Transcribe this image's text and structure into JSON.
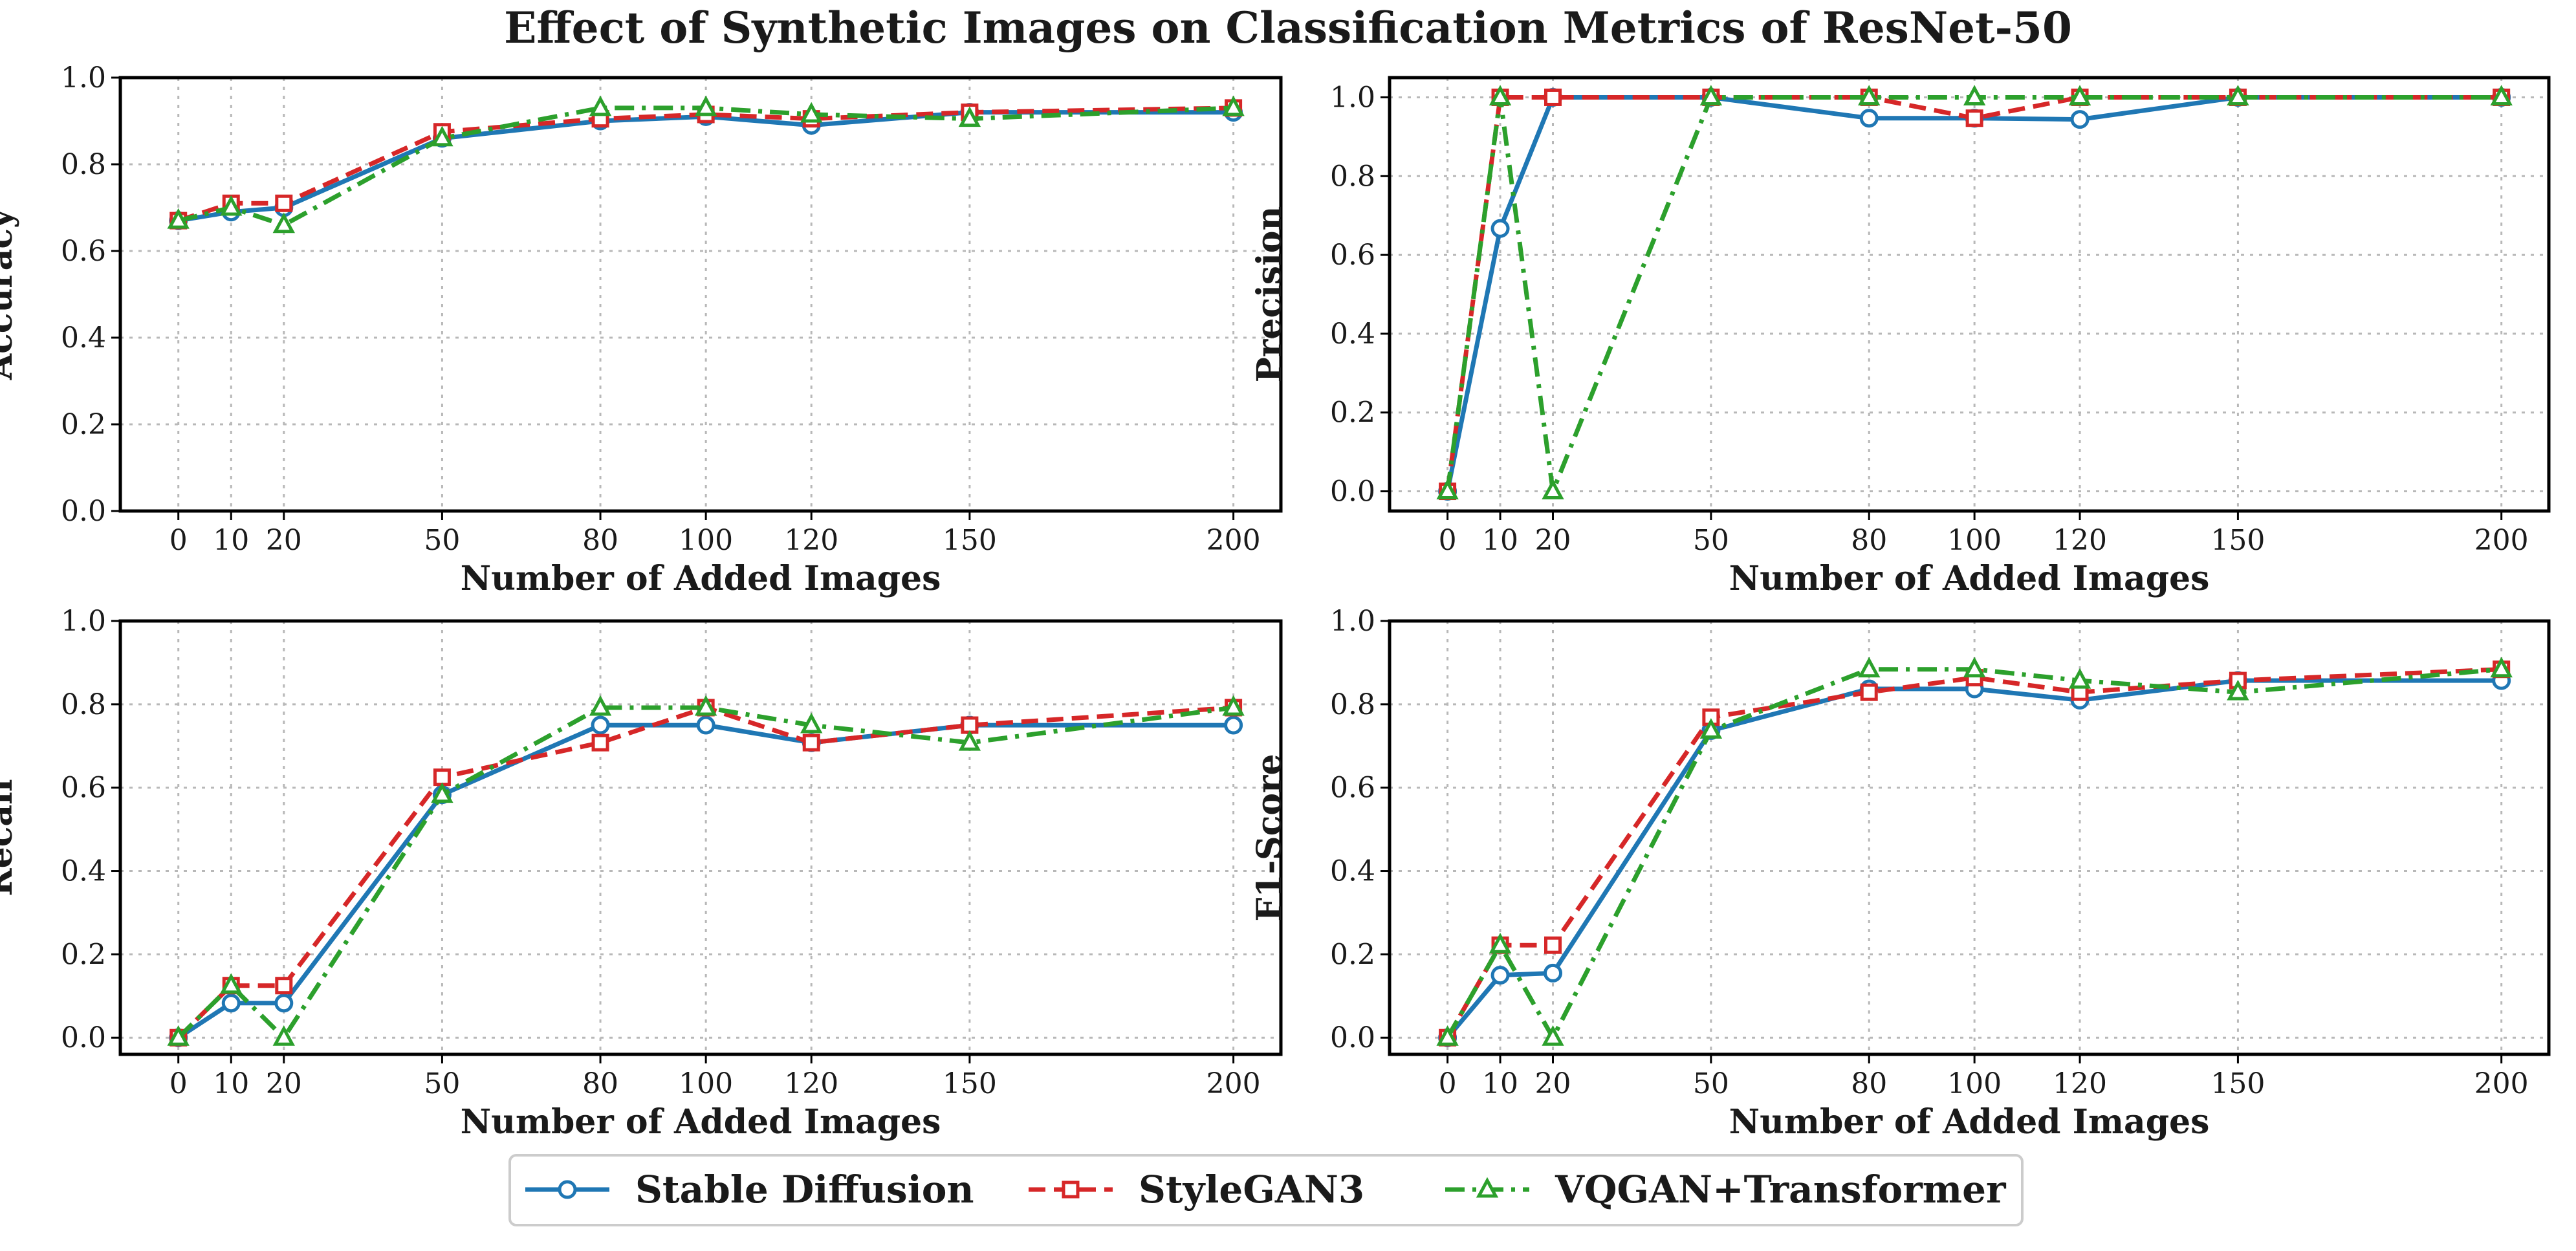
{
  "chart_data": {
    "type": "line",
    "title": "Effect of Synthetic Images on Classification Metrics of ResNet-50",
    "x": [
      0,
      10,
      20,
      50,
      80,
      100,
      120,
      150,
      200
    ],
    "x_tick_labels": [
      "0",
      "10",
      "20",
      "50",
      "80",
      "100",
      "120",
      "150",
      "200"
    ],
    "xlabel": "Number of Added Images",
    "grid": true,
    "legend_position": "bottom-center",
    "series_styles": [
      {
        "name": "Stable Diffusion",
        "color": "#1f77b4",
        "marker": "circle",
        "dash": "solid"
      },
      {
        "name": "StyleGAN3",
        "color": "#d62728",
        "marker": "square",
        "dash": "dashed"
      },
      {
        "name": "VQGAN+Transformer",
        "color": "#2ca02c",
        "marker": "triangle",
        "dash": "dashdot"
      }
    ],
    "panels": [
      {
        "ylabel": "Accuracy",
        "ylim": [
          0.0,
          1.0
        ],
        "y_ticks": [
          "0.0",
          "0.2",
          "0.4",
          "0.6",
          "0.8",
          "1.0"
        ],
        "series": [
          {
            "name": "Stable Diffusion",
            "values": [
              0.67,
              0.69,
              0.7,
              0.86,
              0.9,
              0.91,
              0.89,
              0.92,
              0.92
            ]
          },
          {
            "name": "StyleGAN3",
            "values": [
              0.67,
              0.71,
              0.71,
              0.875,
              0.905,
              0.915,
              0.905,
              0.92,
              0.93
            ]
          },
          {
            "name": "VQGAN+Transformer",
            "values": [
              0.67,
              0.7,
              0.66,
              0.86,
              0.93,
              0.93,
              0.915,
              0.905,
              0.93
            ]
          }
        ]
      },
      {
        "ylabel": "Precision",
        "ylim": [
          -0.05,
          1.05
        ],
        "y_ticks": [
          "0.0",
          "0.2",
          "0.4",
          "0.6",
          "0.8",
          "1.0"
        ],
        "series": [
          {
            "name": "Stable Diffusion",
            "values": [
              0.0,
              0.667,
              1.0,
              1.0,
              0.947,
              0.947,
              0.944,
              1.0,
              1.0
            ]
          },
          {
            "name": "StyleGAN3",
            "values": [
              0.0,
              1.0,
              1.0,
              1.0,
              1.0,
              0.947,
              1.0,
              1.0,
              1.0
            ]
          },
          {
            "name": "VQGAN+Transformer",
            "values": [
              0.0,
              1.0,
              0.0,
              1.0,
              1.0,
              1.0,
              1.0,
              1.0,
              1.0
            ]
          }
        ]
      },
      {
        "ylabel": "Recall",
        "ylim": [
          -0.04,
          1.0
        ],
        "y_ticks": [
          "0.0",
          "0.2",
          "0.4",
          "0.6",
          "0.8",
          "1.0"
        ],
        "series": [
          {
            "name": "Stable Diffusion",
            "values": [
              0.0,
              0.083,
              0.083,
              0.583,
              0.75,
              0.75,
              0.708,
              0.75,
              0.75
            ]
          },
          {
            "name": "StyleGAN3",
            "values": [
              0.0,
              0.125,
              0.125,
              0.625,
              0.708,
              0.792,
              0.708,
              0.75,
              0.792
            ]
          },
          {
            "name": "VQGAN+Transformer",
            "values": [
              0.0,
              0.125,
              0.0,
              0.583,
              0.792,
              0.792,
              0.75,
              0.708,
              0.792
            ]
          }
        ]
      },
      {
        "ylabel": "F1-Score",
        "ylim": [
          -0.04,
          1.0
        ],
        "y_ticks": [
          "0.0",
          "0.2",
          "0.4",
          "0.6",
          "0.8",
          "1.0"
        ],
        "series": [
          {
            "name": "Stable Diffusion",
            "values": [
              0.0,
              0.15,
              0.155,
              0.737,
              0.837,
              0.837,
              0.81,
              0.857,
              0.857
            ]
          },
          {
            "name": "StyleGAN3",
            "values": [
              0.0,
              0.222,
              0.222,
              0.769,
              0.829,
              0.864,
              0.829,
              0.857,
              0.884
            ]
          },
          {
            "name": "VQGAN+Transformer",
            "values": [
              0.0,
              0.222,
              0.0,
              0.737,
              0.884,
              0.884,
              0.857,
              0.829,
              0.884
            ]
          }
        ]
      }
    ]
  }
}
